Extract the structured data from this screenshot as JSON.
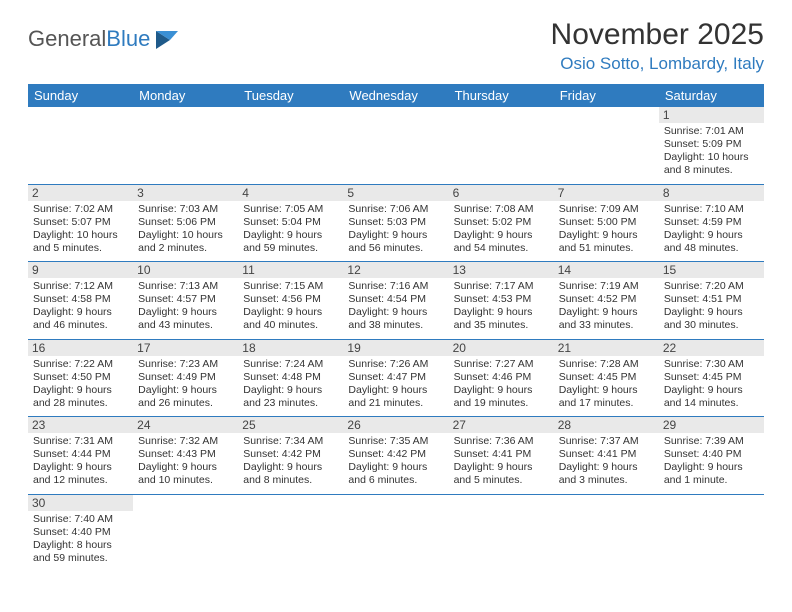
{
  "header": {
    "logo_general": "General",
    "logo_blue": "Blue",
    "month_title": "November 2025",
    "location": "Osio Sotto, Lombardy, Italy"
  },
  "colors": {
    "brand": "#2f7bbf",
    "daynum_bg": "#e9e9e9",
    "text": "#333333",
    "bg": "#ffffff"
  },
  "dow": [
    "Sunday",
    "Monday",
    "Tuesday",
    "Wednesday",
    "Thursday",
    "Friday",
    "Saturday"
  ],
  "weeks": [
    [
      null,
      null,
      null,
      null,
      null,
      null,
      {
        "n": "1",
        "sr": "Sunrise: 7:01 AM",
        "ss": "Sunset: 5:09 PM",
        "dl": "Daylight: 10 hours and 8 minutes."
      }
    ],
    [
      {
        "n": "2",
        "sr": "Sunrise: 7:02 AM",
        "ss": "Sunset: 5:07 PM",
        "dl": "Daylight: 10 hours and 5 minutes."
      },
      {
        "n": "3",
        "sr": "Sunrise: 7:03 AM",
        "ss": "Sunset: 5:06 PM",
        "dl": "Daylight: 10 hours and 2 minutes."
      },
      {
        "n": "4",
        "sr": "Sunrise: 7:05 AM",
        "ss": "Sunset: 5:04 PM",
        "dl": "Daylight: 9 hours and 59 minutes."
      },
      {
        "n": "5",
        "sr": "Sunrise: 7:06 AM",
        "ss": "Sunset: 5:03 PM",
        "dl": "Daylight: 9 hours and 56 minutes."
      },
      {
        "n": "6",
        "sr": "Sunrise: 7:08 AM",
        "ss": "Sunset: 5:02 PM",
        "dl": "Daylight: 9 hours and 54 minutes."
      },
      {
        "n": "7",
        "sr": "Sunrise: 7:09 AM",
        "ss": "Sunset: 5:00 PM",
        "dl": "Daylight: 9 hours and 51 minutes."
      },
      {
        "n": "8",
        "sr": "Sunrise: 7:10 AM",
        "ss": "Sunset: 4:59 PM",
        "dl": "Daylight: 9 hours and 48 minutes."
      }
    ],
    [
      {
        "n": "9",
        "sr": "Sunrise: 7:12 AM",
        "ss": "Sunset: 4:58 PM",
        "dl": "Daylight: 9 hours and 46 minutes."
      },
      {
        "n": "10",
        "sr": "Sunrise: 7:13 AM",
        "ss": "Sunset: 4:57 PM",
        "dl": "Daylight: 9 hours and 43 minutes."
      },
      {
        "n": "11",
        "sr": "Sunrise: 7:15 AM",
        "ss": "Sunset: 4:56 PM",
        "dl": "Daylight: 9 hours and 40 minutes."
      },
      {
        "n": "12",
        "sr": "Sunrise: 7:16 AM",
        "ss": "Sunset: 4:54 PM",
        "dl": "Daylight: 9 hours and 38 minutes."
      },
      {
        "n": "13",
        "sr": "Sunrise: 7:17 AM",
        "ss": "Sunset: 4:53 PM",
        "dl": "Daylight: 9 hours and 35 minutes."
      },
      {
        "n": "14",
        "sr": "Sunrise: 7:19 AM",
        "ss": "Sunset: 4:52 PM",
        "dl": "Daylight: 9 hours and 33 minutes."
      },
      {
        "n": "15",
        "sr": "Sunrise: 7:20 AM",
        "ss": "Sunset: 4:51 PM",
        "dl": "Daylight: 9 hours and 30 minutes."
      }
    ],
    [
      {
        "n": "16",
        "sr": "Sunrise: 7:22 AM",
        "ss": "Sunset: 4:50 PM",
        "dl": "Daylight: 9 hours and 28 minutes."
      },
      {
        "n": "17",
        "sr": "Sunrise: 7:23 AM",
        "ss": "Sunset: 4:49 PM",
        "dl": "Daylight: 9 hours and 26 minutes."
      },
      {
        "n": "18",
        "sr": "Sunrise: 7:24 AM",
        "ss": "Sunset: 4:48 PM",
        "dl": "Daylight: 9 hours and 23 minutes."
      },
      {
        "n": "19",
        "sr": "Sunrise: 7:26 AM",
        "ss": "Sunset: 4:47 PM",
        "dl": "Daylight: 9 hours and 21 minutes."
      },
      {
        "n": "20",
        "sr": "Sunrise: 7:27 AM",
        "ss": "Sunset: 4:46 PM",
        "dl": "Daylight: 9 hours and 19 minutes."
      },
      {
        "n": "21",
        "sr": "Sunrise: 7:28 AM",
        "ss": "Sunset: 4:45 PM",
        "dl": "Daylight: 9 hours and 17 minutes."
      },
      {
        "n": "22",
        "sr": "Sunrise: 7:30 AM",
        "ss": "Sunset: 4:45 PM",
        "dl": "Daylight: 9 hours and 14 minutes."
      }
    ],
    [
      {
        "n": "23",
        "sr": "Sunrise: 7:31 AM",
        "ss": "Sunset: 4:44 PM",
        "dl": "Daylight: 9 hours and 12 minutes."
      },
      {
        "n": "24",
        "sr": "Sunrise: 7:32 AM",
        "ss": "Sunset: 4:43 PM",
        "dl": "Daylight: 9 hours and 10 minutes."
      },
      {
        "n": "25",
        "sr": "Sunrise: 7:34 AM",
        "ss": "Sunset: 4:42 PM",
        "dl": "Daylight: 9 hours and 8 minutes."
      },
      {
        "n": "26",
        "sr": "Sunrise: 7:35 AM",
        "ss": "Sunset: 4:42 PM",
        "dl": "Daylight: 9 hours and 6 minutes."
      },
      {
        "n": "27",
        "sr": "Sunrise: 7:36 AM",
        "ss": "Sunset: 4:41 PM",
        "dl": "Daylight: 9 hours and 5 minutes."
      },
      {
        "n": "28",
        "sr": "Sunrise: 7:37 AM",
        "ss": "Sunset: 4:41 PM",
        "dl": "Daylight: 9 hours and 3 minutes."
      },
      {
        "n": "29",
        "sr": "Sunrise: 7:39 AM",
        "ss": "Sunset: 4:40 PM",
        "dl": "Daylight: 9 hours and 1 minute."
      }
    ],
    [
      {
        "n": "30",
        "sr": "Sunrise: 7:40 AM",
        "ss": "Sunset: 4:40 PM",
        "dl": "Daylight: 8 hours and 59 minutes."
      },
      null,
      null,
      null,
      null,
      null,
      null
    ]
  ]
}
